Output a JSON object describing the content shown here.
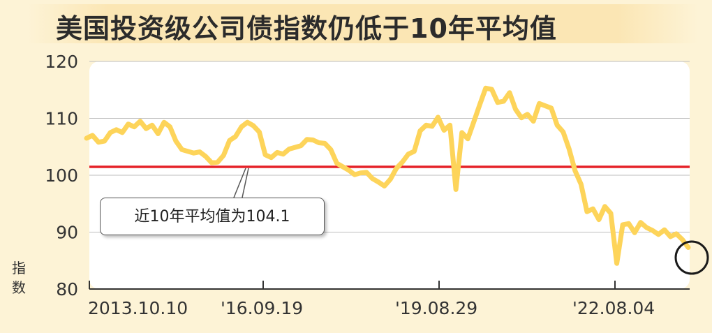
{
  "title": "美国投资级公司债指数仍低于10年平均值",
  "chart_data": {
    "type": "line",
    "ylabel": "指数",
    "ylim": [
      80,
      120
    ],
    "yticks": [
      80,
      90,
      100,
      110,
      120
    ],
    "xticks": [
      "2013.10.10",
      "'16.09.19",
      "'19.08.29",
      "'22.08.04"
    ],
    "average": {
      "value": 104.1,
      "label": "近10年平均值为104.1"
    },
    "series": [
      {
        "values": [
          106.5,
          107,
          105.8,
          106,
          107.5,
          108,
          107.5,
          109,
          108.5,
          109.5,
          108.2,
          108.8,
          107.3,
          109.3,
          108.5,
          106,
          104.5,
          104.2,
          103.9,
          104.1,
          103.3,
          102.2,
          102.3,
          103.5,
          106.1,
          106.8,
          108.5,
          109.3,
          108.7,
          107.6,
          103.6,
          103.1,
          104,
          103.7,
          104.6,
          104.9,
          105.2,
          106.3,
          106.2,
          105.7,
          105.6,
          104.5,
          102.1,
          101.5,
          100.9,
          100.1,
          100.4,
          100.5,
          99.4,
          98.8,
          98.1,
          99.3,
          101.2,
          102.3,
          103.7,
          104.2,
          107.8,
          108.8,
          108.6,
          110.2,
          107.9,
          108.8,
          97.5,
          107.5,
          106.4,
          109.4,
          112.4,
          115.3,
          115.1,
          112.8,
          113,
          114.5,
          111.6,
          110.1,
          110.7,
          109.5,
          112.6,
          112.2,
          111.8,
          108.8,
          107.6,
          104.6,
          100.8,
          98.4,
          93.6,
          94.1,
          92.2,
          94.5,
          93.3,
          84.5,
          91.3,
          91.5,
          89.9,
          91.7,
          90.8,
          90.3,
          89.6,
          90.4,
          89.2,
          89.7,
          88.7,
          87.3
        ]
      }
    ]
  }
}
